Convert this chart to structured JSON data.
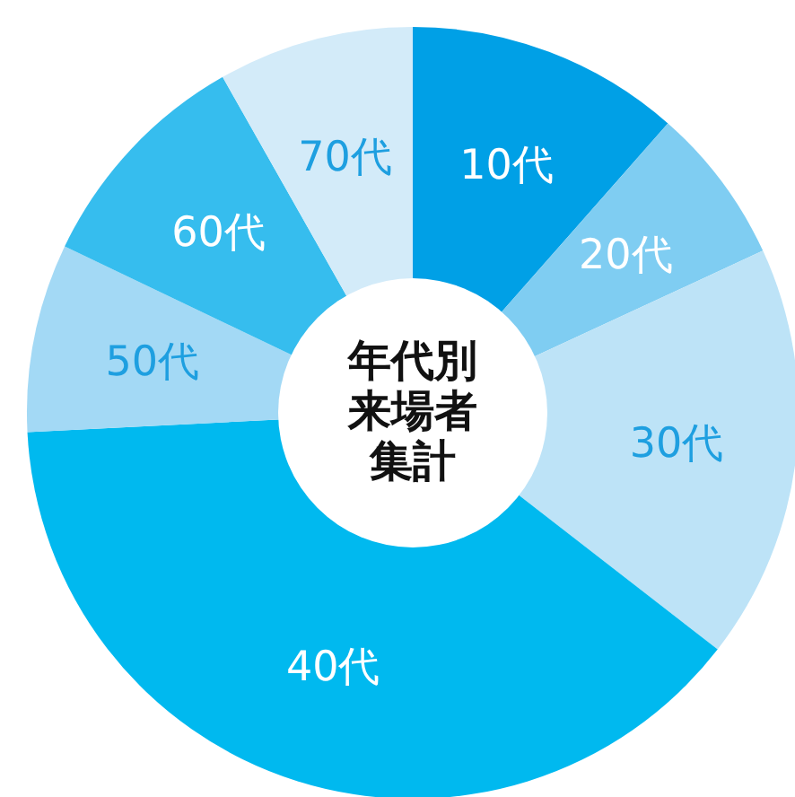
{
  "chart_data": {
    "type": "donut",
    "title": "年代別来場者集計",
    "categories": [
      "10代",
      "20代",
      "30代",
      "40代",
      "50代",
      "60代",
      "70代"
    ],
    "values": [
      11.5,
      6.6,
      17.4,
      38.7,
      7.9,
      9.7,
      8.2
    ],
    "colors": [
      "#00a0e6",
      "#7fcdf2",
      "#bde3f7",
      "#00b9ef",
      "#a3d9f5",
      "#36bdee",
      "#d3ebf9"
    ],
    "legend": false
  }
}
